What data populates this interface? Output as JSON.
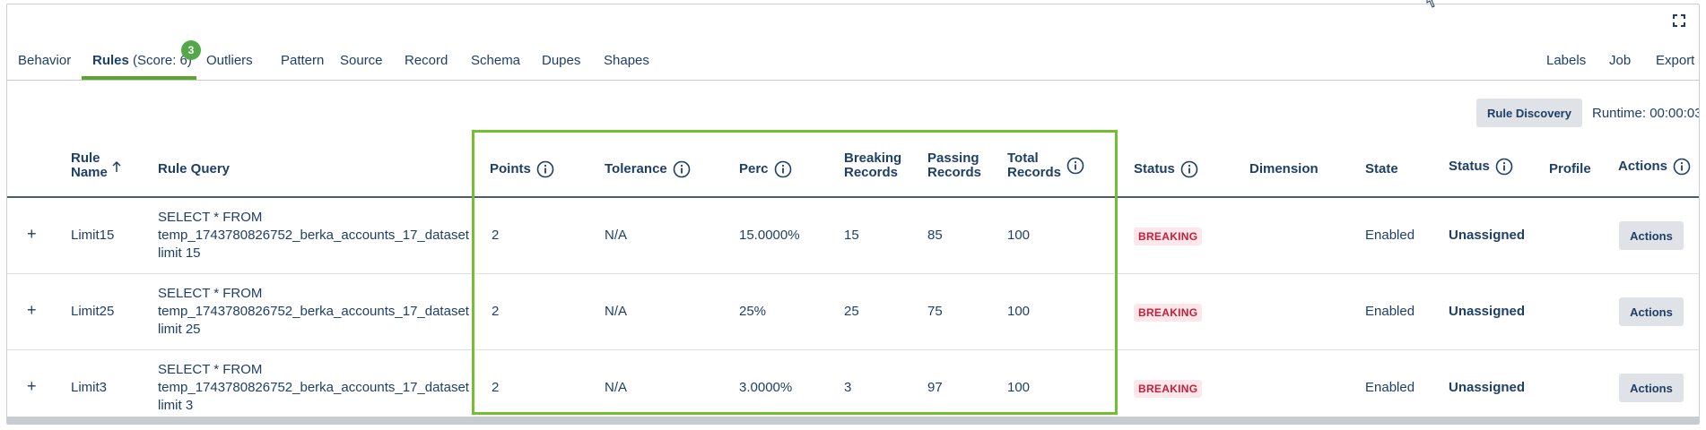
{
  "tabs": [
    {
      "label": "Behavior"
    },
    {
      "label": "Rules",
      "score_label": "(Score: 6)",
      "badge": "3",
      "active": true
    },
    {
      "label": "Outliers"
    },
    {
      "label": "Pattern"
    },
    {
      "label": "Source"
    },
    {
      "label": "Record"
    },
    {
      "label": "Schema"
    },
    {
      "label": "Dupes"
    },
    {
      "label": "Shapes"
    }
  ],
  "right_tabs": [
    {
      "label": "Labels"
    },
    {
      "label": "Job"
    },
    {
      "label": "Export"
    }
  ],
  "toolbar": {
    "discovery_label": "Rule Discovery",
    "runtime_label": "Runtime: 00:00:03"
  },
  "columns": {
    "rule_name": "Rule Name",
    "rule_query": "Rule Query",
    "points": "Points",
    "tolerance": "Tolerance",
    "perc": "Perc",
    "breaking": "Breaking Records",
    "passing": "Passing Records",
    "total": "Total Records",
    "status": "Status",
    "dimension": "Dimension",
    "state": "State",
    "status2": "Status",
    "profile": "Profile",
    "actions": "Actions"
  },
  "rows": [
    {
      "expand": "+",
      "name": "Limit15",
      "query_line1": "SELECT * FROM",
      "query_line2": "temp_1743780826752_berka_accounts_17_dataset",
      "query_line3": "limit 15",
      "points": "2",
      "tolerance": "N/A",
      "perc": "15.0000%",
      "breaking": "15",
      "passing": "85",
      "total": "100",
      "status": "BREAKING",
      "dimension": "",
      "state": "Enabled",
      "assignment": "Unassigned",
      "profile": "",
      "action_label": "Actions"
    },
    {
      "expand": "+",
      "name": "Limit25",
      "query_line1": "SELECT * FROM",
      "query_line2": "temp_1743780826752_berka_accounts_17_dataset",
      "query_line3": "limit 25",
      "points": "2",
      "tolerance": "N/A",
      "perc": "25%",
      "breaking": "25",
      "passing": "75",
      "total": "100",
      "status": "BREAKING",
      "dimension": "",
      "state": "Enabled",
      "assignment": "Unassigned",
      "profile": "",
      "action_label": "Actions"
    },
    {
      "expand": "+",
      "name": "Limit3",
      "query_line1": "SELECT * FROM",
      "query_line2": "temp_1743780826752_berka_accounts_17_dataset",
      "query_line3": "limit 3",
      "points": "2",
      "tolerance": "N/A",
      "perc": "3.0000%",
      "breaking": "3",
      "passing": "97",
      "total": "100",
      "status": "BREAKING",
      "dimension": "",
      "state": "Enabled",
      "assignment": "Unassigned",
      "profile": "",
      "action_label": "Actions"
    }
  ],
  "colors": {
    "accent": "#5ba52c",
    "highlight": "#72bf30",
    "breaking_bg": "#fde7ea",
    "breaking_text": "#c21f3a",
    "text": "#1e3f66"
  }
}
